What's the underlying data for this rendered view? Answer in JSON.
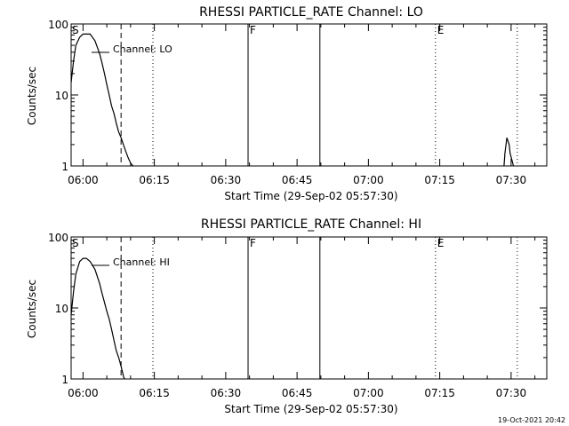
{
  "footer_date": "19-Oct-2021 20:42",
  "chart_data": [
    {
      "type": "line",
      "title": "RHESSI PARTICLE_RATE Channel: LO",
      "xlabel": "Start Time (29-Sep-02 05:57:30)",
      "ylabel": "Counts/sec",
      "y_scale": "log",
      "ylim": [
        1,
        100
      ],
      "xlim_minutes_since_start": [
        0,
        100
      ],
      "x_ticks": [
        {
          "label": "06:00",
          "min": 2.5
        },
        {
          "label": "06:15",
          "min": 17.5
        },
        {
          "label": "06:30",
          "min": 32.5
        },
        {
          "label": "06:45",
          "min": 47.5
        },
        {
          "label": "07:00",
          "min": 62.5
        },
        {
          "label": "07:15",
          "min": 77.5
        },
        {
          "label": "07:30",
          "min": 92.5
        }
      ],
      "y_ticks": [
        {
          "label": "1",
          "value": 1
        },
        {
          "label": "10",
          "value": 10
        },
        {
          "label": "100",
          "value": 100
        }
      ],
      "legend": {
        "label": "Channel: LO",
        "position": "top-left"
      },
      "markers": [
        {
          "style": "dashed",
          "min": 10.5,
          "label": ""
        },
        {
          "style": "dotted",
          "min": 17.2,
          "label": ""
        },
        {
          "style": "solid",
          "min": 37.2,
          "label": "F"
        },
        {
          "style": "solid",
          "min": 52.3,
          "label": ""
        },
        {
          "style": "dotted",
          "min": 76.6,
          "label": "E"
        },
        {
          "style": "dotted",
          "min": 93.8,
          "label": ""
        }
      ],
      "start_label": "S",
      "series": [
        {
          "x": [
            0.0,
            0.5,
            1.0,
            1.8,
            2.5,
            3.2,
            4.0,
            5.0,
            6.0,
            6.5,
            7.0,
            7.5,
            8.0,
            8.5,
            9.0,
            9.5,
            10.0,
            10.5,
            11.0,
            11.5,
            12.0,
            12.5,
            13.0
          ],
          "y": [
            15,
            30,
            50,
            65,
            72,
            72,
            72,
            58,
            38,
            28,
            20,
            14,
            10,
            7,
            5.5,
            4,
            3,
            2.5,
            2,
            1.6,
            1.3,
            1.1,
            1
          ],
          "segments_note": ""
        },
        {
          "x": [
            91.0,
            91.2,
            91.6,
            92.1,
            92.3,
            92.7,
            93.0
          ],
          "y": [
            1,
            1.5,
            2.5,
            2.0,
            1.5,
            1.2,
            1
          ]
        }
      ]
    },
    {
      "type": "line",
      "title": "RHESSI PARTICLE_RATE Channel: HI",
      "xlabel": "Start Time (29-Sep-02 05:57:30)",
      "ylabel": "Counts/sec",
      "y_scale": "log",
      "ylim": [
        1,
        100
      ],
      "xlim_minutes_since_start": [
        0,
        100
      ],
      "x_ticks": [
        {
          "label": "06:00",
          "min": 2.5
        },
        {
          "label": "06:15",
          "min": 17.5
        },
        {
          "label": "06:30",
          "min": 32.5
        },
        {
          "label": "06:45",
          "min": 47.5
        },
        {
          "label": "07:00",
          "min": 62.5
        },
        {
          "label": "07:15",
          "min": 77.5
        },
        {
          "label": "07:30",
          "min": 92.5
        }
      ],
      "y_ticks": [
        {
          "label": "1",
          "value": 1
        },
        {
          "label": "10",
          "value": 10
        },
        {
          "label": "100",
          "value": 100
        }
      ],
      "legend": {
        "label": "Channel: HI",
        "position": "top-left"
      },
      "markers": [
        {
          "style": "dashed",
          "min": 10.5,
          "label": ""
        },
        {
          "style": "dotted",
          "min": 17.2,
          "label": ""
        },
        {
          "style": "solid",
          "min": 37.2,
          "label": "F"
        },
        {
          "style": "solid",
          "min": 52.3,
          "label": ""
        },
        {
          "style": "dotted",
          "min": 76.6,
          "label": "E"
        },
        {
          "style": "dotted",
          "min": 93.8,
          "label": ""
        }
      ],
      "start_label": "S",
      "series": [
        {
          "x": [
            0.0,
            0.5,
            1.0,
            1.8,
            2.5,
            3.2,
            4.0,
            5.0,
            6.0,
            6.5,
            7.0,
            7.5,
            8.0,
            8.5,
            9.0,
            9.5,
            10.0,
            10.5,
            11.0,
            11.2
          ],
          "y": [
            8,
            17,
            30,
            45,
            50,
            50,
            45,
            35,
            22,
            16,
            12,
            9,
            7,
            5,
            3.5,
            2.5,
            2,
            1.5,
            1.1,
            1
          ]
        }
      ]
    }
  ]
}
